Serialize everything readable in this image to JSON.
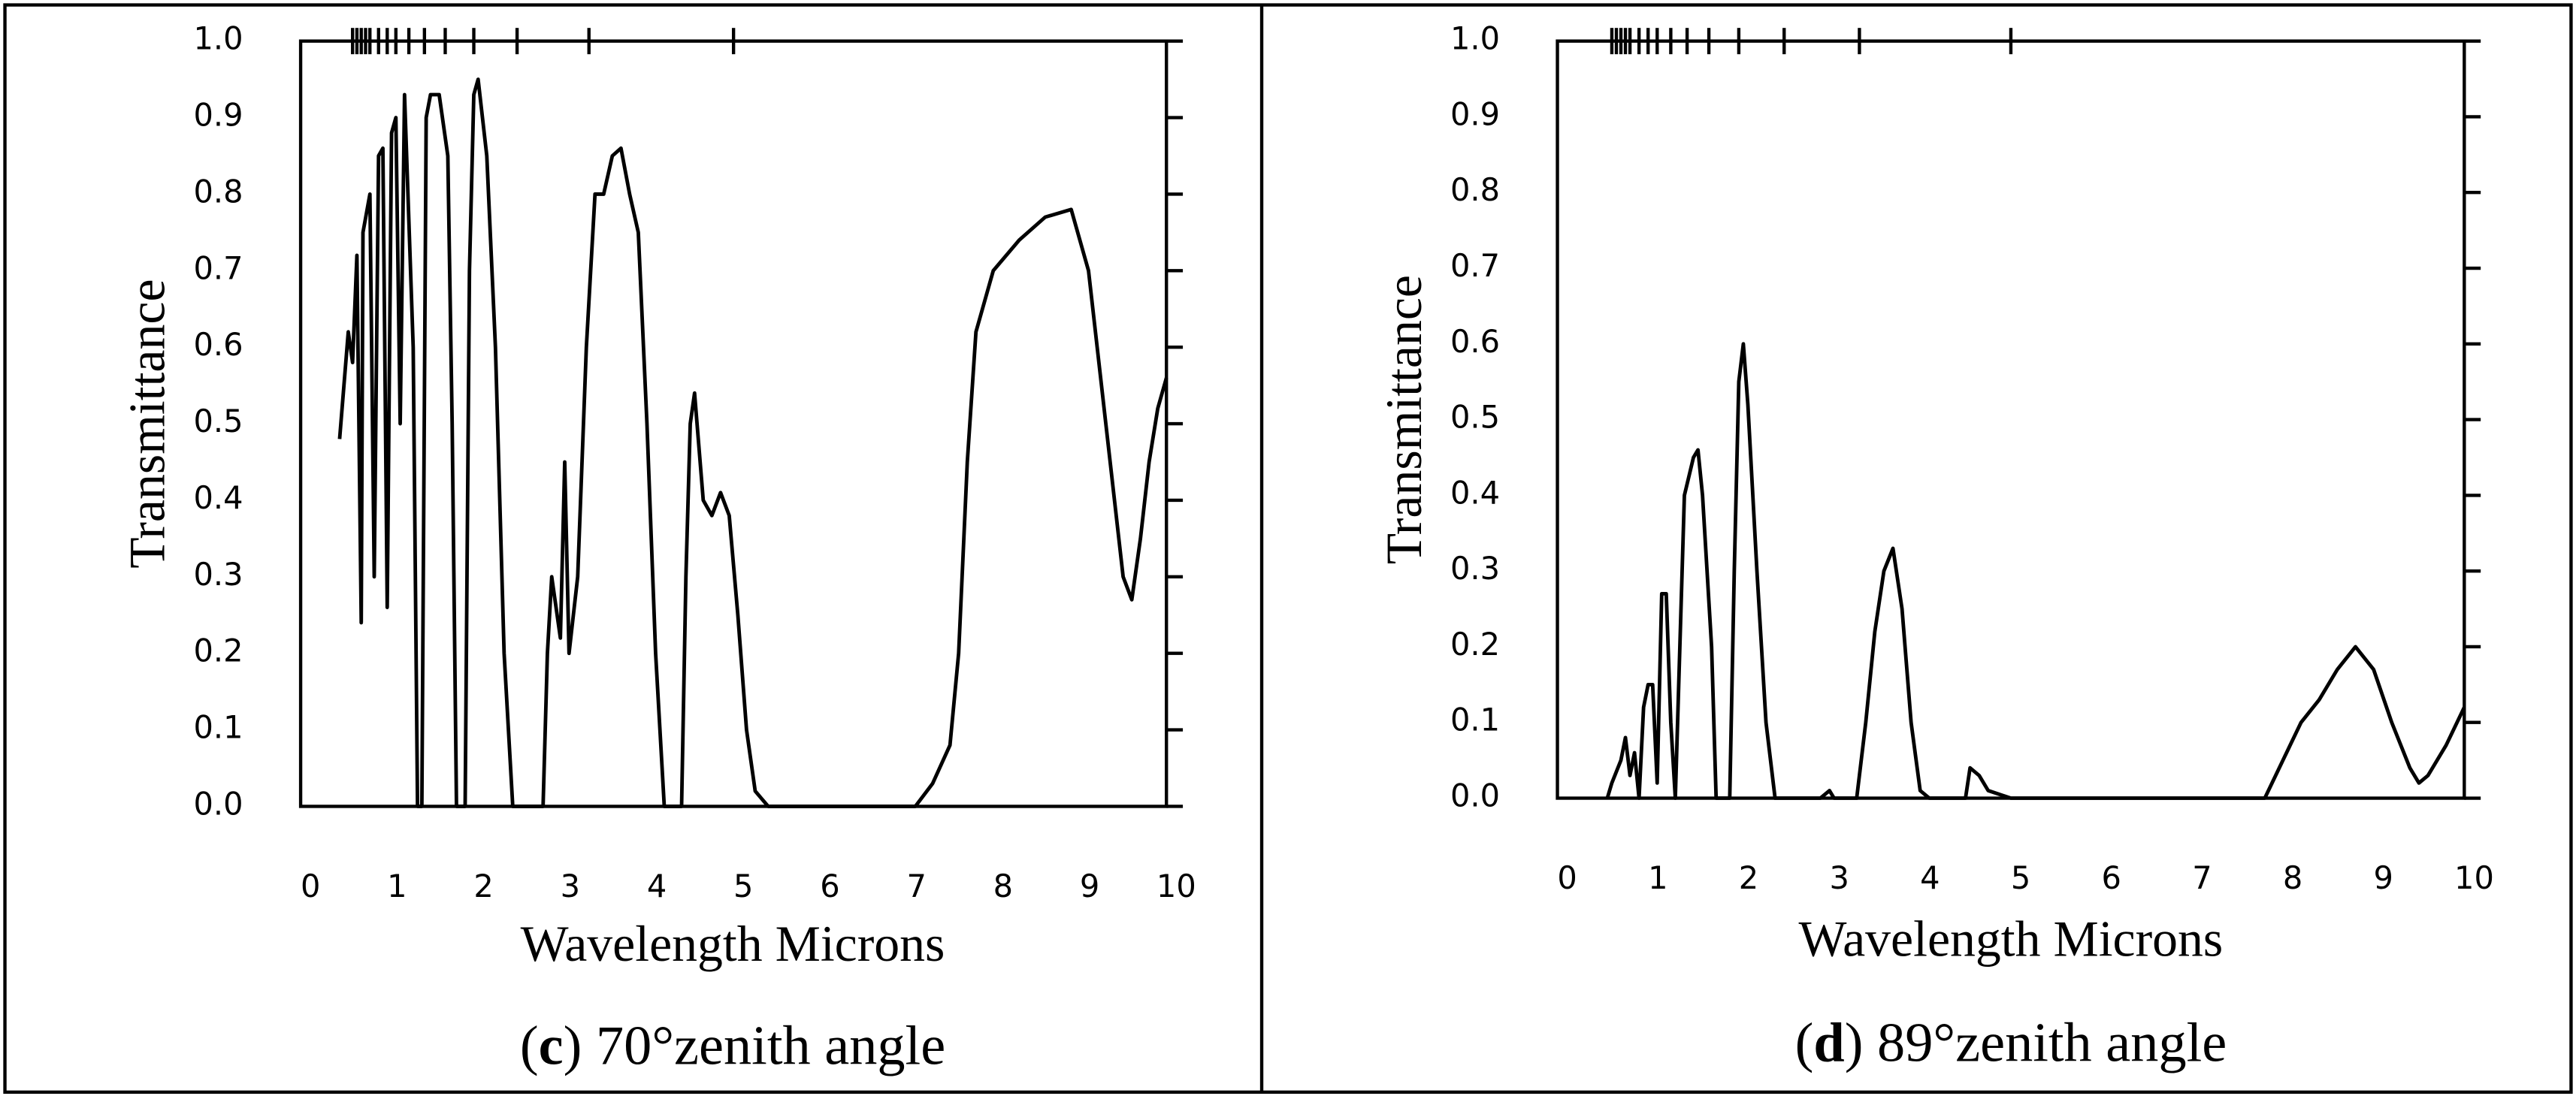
{
  "chart_data": [
    {
      "type": "line",
      "caption_parts": [
        "(",
        "c",
        ") 70°zenith angle"
      ],
      "x_label": "Wavelength Microns",
      "y_label": "Transmittance",
      "xlim": [
        0,
        10
      ],
      "ylim": [
        0,
        1
      ],
      "xticks": [
        0,
        1,
        2,
        3,
        4,
        5,
        6,
        7,
        8,
        9,
        10
      ],
      "yticks": [
        {
          "value": 0,
          "label": "0.0"
        },
        0.1,
        0.2,
        0.3,
        0.4,
        0.5,
        0.6,
        0.7,
        0.8,
        0.9,
        {
          "value": 1,
          "label": "1.0"
        }
      ],
      "x2ticks": [
        0.6,
        0.65,
        0.7,
        0.75,
        0.8,
        0.9,
        1.0,
        1.1,
        1.25,
        1.43,
        1.67,
        2.0,
        2.5,
        3.33,
        5.0
      ],
      "series": [
        {
          "color": "#000000",
          "x": [
            0.45,
            0.5,
            0.55,
            0.6,
            0.65,
            0.7,
            0.72,
            0.8,
            0.85,
            0.9,
            0.95,
            1.0,
            1.05,
            1.1,
            1.15,
            1.2,
            1.3,
            1.35,
            1.4,
            1.45,
            1.5,
            1.6,
            1.7,
            1.75,
            1.8,
            1.9,
            1.95,
            2.0,
            2.05,
            2.15,
            2.25,
            2.35,
            2.45,
            2.8,
            2.85,
            2.9,
            3.0,
            3.05,
            3.1,
            3.2,
            3.3,
            3.4,
            3.5,
            3.6,
            3.7,
            3.8,
            3.9,
            4.0,
            4.1,
            4.2,
            4.4,
            4.45,
            4.5,
            4.55,
            4.65,
            4.75,
            4.85,
            4.95,
            5.05,
            5.15,
            5.25,
            5.4,
            7.1,
            7.3,
            7.5,
            7.6,
            7.7,
            7.8,
            8.0,
            8.3,
            8.6,
            8.9,
            9.1,
            9.3,
            9.5,
            9.6,
            9.7,
            9.8,
            9.9,
            10.0
          ],
          "values": [
            0.48,
            0.55,
            0.62,
            0.58,
            0.72,
            0.24,
            0.75,
            0.8,
            0.3,
            0.85,
            0.86,
            0.26,
            0.88,
            0.9,
            0.5,
            0.93,
            0.6,
            0.0,
            0.0,
            0.9,
            0.93,
            0.93,
            0.85,
            0.5,
            0.0,
            0.0,
            0.7,
            0.93,
            0.95,
            0.85,
            0.6,
            0.2,
            0.0,
            0.0,
            0.2,
            0.3,
            0.22,
            0.45,
            0.2,
            0.3,
            0.6,
            0.8,
            0.8,
            0.85,
            0.86,
            0.8,
            0.75,
            0.5,
            0.2,
            0.0,
            0.0,
            0.3,
            0.5,
            0.54,
            0.4,
            0.38,
            0.41,
            0.38,
            0.25,
            0.1,
            0.02,
            0.0,
            0.0,
            0.03,
            0.08,
            0.2,
            0.45,
            0.62,
            0.7,
            0.74,
            0.77,
            0.78,
            0.7,
            0.5,
            0.3,
            0.27,
            0.35,
            0.45,
            0.52,
            0.56
          ]
        }
      ]
    },
    {
      "type": "line",
      "caption_parts": [
        "(",
        "d",
        ") 89°zenith angle"
      ],
      "x_label": "Wavelength Microns",
      "y_label": "Transmittance",
      "xlim": [
        0,
        10
      ],
      "ylim": [
        0,
        1
      ],
      "xticks": [
        0,
        1,
        2,
        3,
        4,
        5,
        6,
        7,
        8,
        9,
        10
      ],
      "yticks": [
        {
          "value": 0,
          "label": "0.0"
        },
        0.1,
        0.2,
        0.3,
        0.4,
        0.5,
        0.6,
        0.7,
        0.8,
        0.9,
        {
          "value": 1,
          "label": "1.0"
        }
      ],
      "x2ticks": [
        0.6,
        0.65,
        0.7,
        0.75,
        0.8,
        0.9,
        1.0,
        1.1,
        1.25,
        1.43,
        1.67,
        2.0,
        2.5,
        3.33,
        5.0
      ],
      "series": [
        {
          "color": "#000000",
          "x": [
            0.55,
            0.6,
            0.7,
            0.75,
            0.8,
            0.85,
            0.9,
            0.95,
            1.0,
            1.05,
            1.1,
            1.15,
            1.2,
            1.25,
            1.3,
            1.35,
            1.4,
            1.5,
            1.55,
            1.6,
            1.7,
            1.75,
            1.9,
            1.95,
            2.0,
            2.05,
            2.1,
            2.2,
            2.3,
            2.4,
            2.9,
            3.0,
            3.05,
            3.3,
            3.4,
            3.5,
            3.6,
            3.7,
            3.8,
            3.9,
            4.0,
            4.1,
            4.5,
            4.55,
            4.65,
            4.75,
            5.0,
            7.8,
            8.0,
            8.2,
            8.4,
            8.6,
            8.8,
            9.0,
            9.2,
            9.4,
            9.5,
            9.6,
            9.8,
            10.0
          ],
          "values": [
            0.0,
            0.02,
            0.05,
            0.08,
            0.03,
            0.06,
            0.0,
            0.12,
            0.15,
            0.15,
            0.02,
            0.27,
            0.27,
            0.1,
            0.0,
            0.2,
            0.4,
            0.45,
            0.46,
            0.4,
            0.2,
            0.0,
            0.0,
            0.3,
            0.55,
            0.6,
            0.52,
            0.3,
            0.1,
            0.0,
            0.0,
            0.01,
            0.0,
            0.0,
            0.1,
            0.22,
            0.3,
            0.33,
            0.25,
            0.1,
            0.01,
            0.0,
            0.0,
            0.04,
            0.03,
            0.01,
            0.0,
            0.0,
            0.05,
            0.1,
            0.13,
            0.17,
            0.2,
            0.17,
            0.1,
            0.04,
            0.02,
            0.03,
            0.07,
            0.12
          ]
        }
      ]
    }
  ]
}
